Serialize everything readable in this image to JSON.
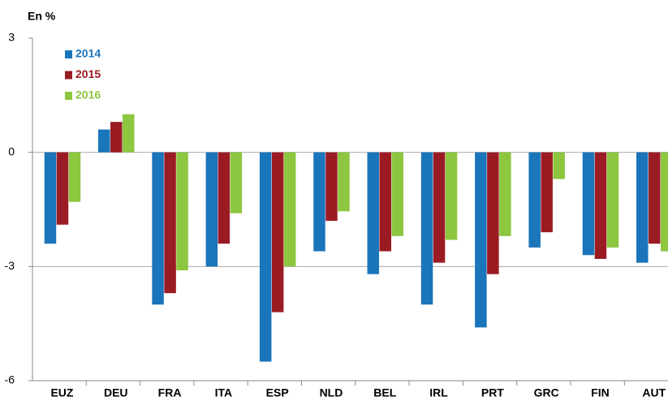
{
  "chart_data": {
    "type": "bar",
    "title": "En %",
    "categories": [
      "EUZ",
      "DEU",
      "FRA",
      "ITA",
      "ESP",
      "NLD",
      "BEL",
      "IRL",
      "PRT",
      "GRC",
      "FIN",
      "AUT"
    ],
    "series": [
      {
        "name": "2014",
        "color": "#1b75bb",
        "values": [
          -2.4,
          0.6,
          -4.0,
          -3.0,
          -5.5,
          -2.6,
          -3.2,
          -4.0,
          -4.6,
          -2.5,
          -2.7,
          -2.9
        ]
      },
      {
        "name": "2015",
        "color": "#9b1b23",
        "values": [
          -1.9,
          0.8,
          -3.7,
          -2.4,
          -4.2,
          -1.8,
          -2.6,
          -2.9,
          -3.2,
          -2.1,
          -2.8,
          -2.4
        ]
      },
      {
        "name": "2016",
        "color": "#8dc63f",
        "values": [
          -1.3,
          1.0,
          -3.1,
          -1.6,
          -3.0,
          -1.55,
          -2.2,
          -2.3,
          -2.2,
          -0.7,
          -2.5,
          -2.6
        ]
      }
    ],
    "ylim": [
      -6,
      3
    ],
    "yticks": [
      -6,
      -3,
      0,
      3
    ],
    "grid": true,
    "legend": "top-left"
  }
}
